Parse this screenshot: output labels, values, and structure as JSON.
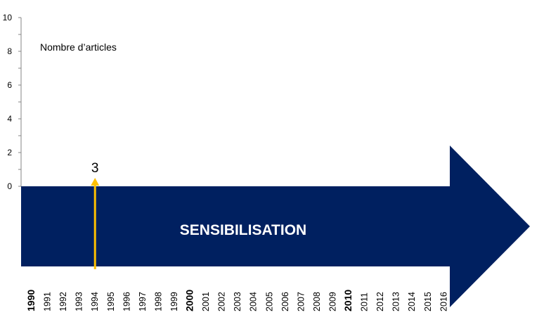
{
  "chart_data": {
    "type": "bar",
    "ylabel": "Nombre d’articles",
    "ylim": [
      0,
      10
    ],
    "yticks": [
      "0",
      "2",
      "4",
      "6",
      "8",
      "10"
    ],
    "categories": [
      "1990",
      "1991",
      "1992",
      "1993",
      "1994",
      "1995",
      "1996",
      "1997",
      "1998",
      "1999",
      "2000",
      "2001",
      "2002",
      "2003",
      "2004",
      "2005",
      "2006",
      "2007",
      "2008",
      "2009",
      "2010",
      "2011",
      "2012",
      "2013",
      "2014",
      "2015",
      "2016"
    ],
    "bold_categories": [
      "1990",
      "2000",
      "2010"
    ],
    "series": [
      {
        "values": [
          0,
          0,
          0,
          0,
          3,
          0,
          0,
          0,
          0,
          0,
          0,
          0,
          0,
          0,
          0,
          0,
          0,
          0,
          0,
          0,
          0,
          0,
          0,
          0,
          0,
          0,
          0
        ]
      }
    ],
    "data_labels": [
      {
        "category": "1994",
        "text": "3"
      }
    ],
    "phase_label": "SENSIBILISATION",
    "colors": {
      "phase_arrow": "#002060",
      "marker_arrow": "#FFC000"
    },
    "grid": false
  }
}
